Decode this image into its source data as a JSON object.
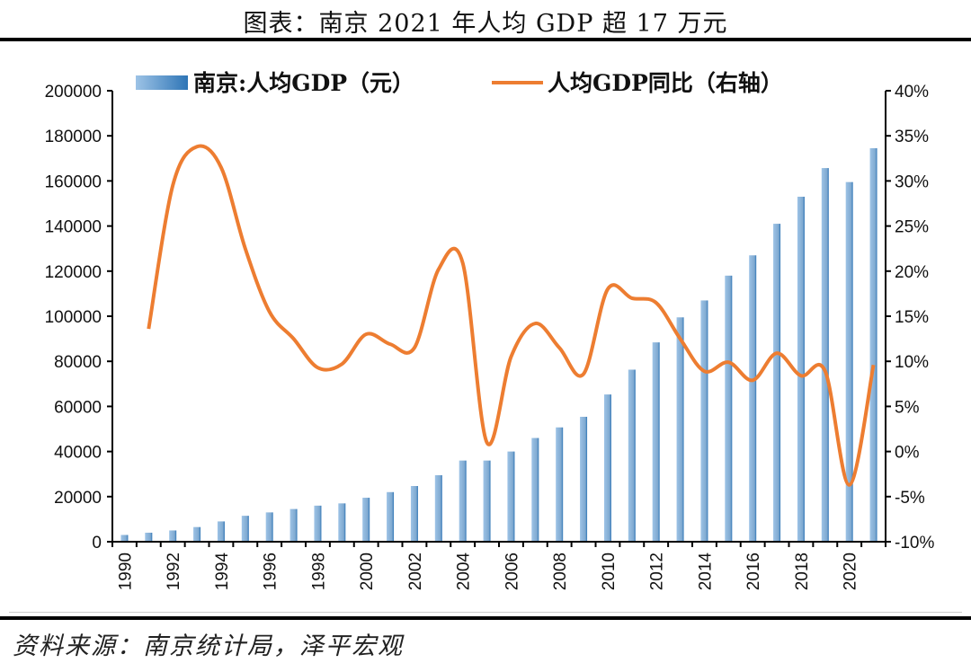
{
  "title": "图表：南京 2021 年人均 GDP 超 17 万元",
  "source": "资料来源：南京统计局，泽平宏观",
  "chart_data": {
    "type": "bar+line",
    "title": "图表：南京 2021 年人均 GDP 超 17 万元",
    "categories": [
      1990,
      1991,
      1992,
      1993,
      1994,
      1995,
      1996,
      1997,
      1998,
      1999,
      2000,
      2001,
      2002,
      2003,
      2004,
      2005,
      2006,
      2007,
      2008,
      2009,
      2010,
      2011,
      2012,
      2013,
      2014,
      2015,
      2016,
      2017,
      2018,
      2019,
      2020,
      2021
    ],
    "x_tick_labels": [
      "1990",
      "1992",
      "1994",
      "1996",
      "1998",
      "2000",
      "2002",
      "2004",
      "2006",
      "2008",
      "2010",
      "2012",
      "2014",
      "2016",
      "2018",
      "2020"
    ],
    "y_left": {
      "range": [
        0,
        200000
      ],
      "ticks": [
        "0",
        "20000",
        "40000",
        "60000",
        "80000",
        "100000",
        "120000",
        "140000",
        "160000",
        "180000",
        "200000"
      ]
    },
    "y_right": {
      "range": [
        -10,
        40
      ],
      "ticks": [
        "-10%",
        "-5%",
        "0%",
        "5%",
        "10%",
        "15%",
        "20%",
        "25%",
        "30%",
        "35%",
        "40%"
      ]
    },
    "grid": false,
    "legend_position": "top",
    "series": [
      {
        "name": "南京:人均GDP（元）",
        "type": "bar",
        "axis": "left",
        "color": "#2e75b6",
        "values": [
          3000,
          4000,
          5000,
          6500,
          9000,
          11500,
          13000,
          14500,
          16000,
          17000,
          19500,
          22000,
          24700,
          29500,
          36000,
          36000,
          40000,
          46000,
          50700,
          55400,
          65300,
          76300,
          88400,
          99500,
          107000,
          118000,
          127000,
          141000,
          153000,
          165700,
          159500,
          174500
        ]
      },
      {
        "name": "人均GDP同比（右轴）",
        "type": "line",
        "axis": "right",
        "color": "#ed7d31",
        "unit": "%",
        "values": [
          null,
          13.6,
          29.5,
          33.8,
          31.5,
          22.5,
          15.5,
          12.5,
          9.3,
          9.7,
          13.0,
          11.9,
          11.5,
          20.2,
          20.9,
          1.0,
          10.5,
          14.2,
          11.5,
          8.6,
          18.0,
          17.0,
          16.5,
          12.5,
          8.9,
          9.9,
          7.9,
          10.9,
          8.4,
          8.9,
          -3.7,
          9.6
        ]
      }
    ]
  }
}
